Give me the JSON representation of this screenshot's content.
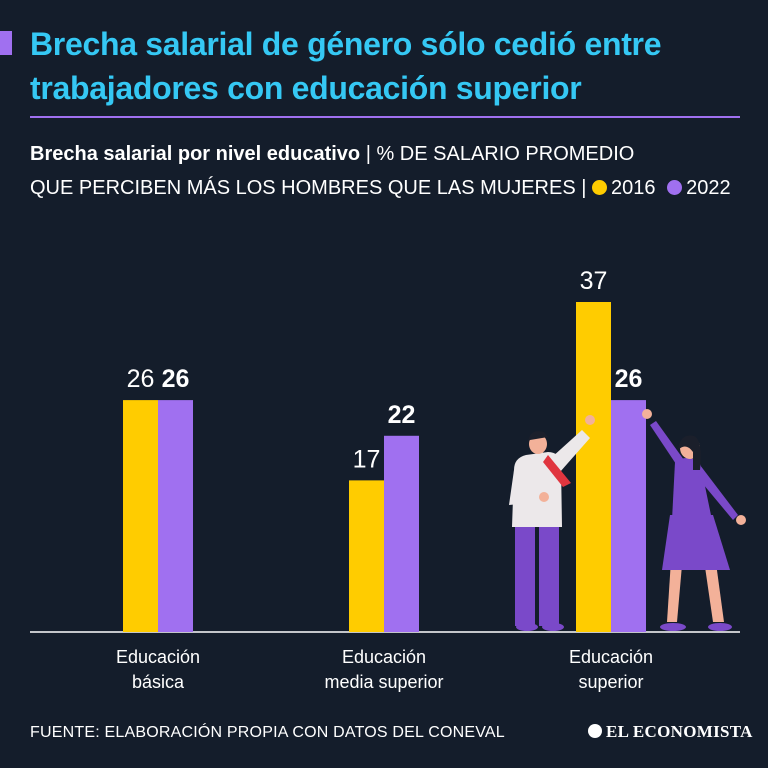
{
  "header": {
    "title": "Brecha salarial de género sólo cedió entre trabajadores con educación superior"
  },
  "subtitle": {
    "bold": "Brecha salarial por nivel educativo",
    "separator": "|",
    "line1_rest": "% DE SALARIO PROMEDIO",
    "line2": "QUE PERCIBEN MÁS LOS HOMBRES QUE LAS MUJERES",
    "separator2": "|",
    "legend": [
      {
        "label": "2016",
        "color": "#ffcc00"
      },
      {
        "label": "2022",
        "color": "#a070f0"
      }
    ]
  },
  "chart_data": {
    "type": "bar",
    "title": "Brecha salarial por nivel educativo",
    "ylabel": "% de salario promedio que perciben más los hombres que las mujeres",
    "categories": [
      [
        "Educación",
        "básica"
      ],
      [
        "Educación",
        "media superior"
      ],
      [
        "Educación",
        "superior"
      ]
    ],
    "series": [
      {
        "name": "2016",
        "color": "#ffcc00",
        "values": [
          26,
          17,
          37
        ]
      },
      {
        "name": "2022",
        "color": "#a070f0",
        "values": [
          26,
          22,
          26
        ]
      }
    ],
    "ylim": [
      0,
      37
    ],
    "grid": false,
    "legend_position": "subtitle"
  },
  "footer": {
    "source": "FUENTE: ELABORACIÓN PROPIA CON DATOS DEL CONEVAL",
    "brand": "EL ECONOMISTA"
  }
}
